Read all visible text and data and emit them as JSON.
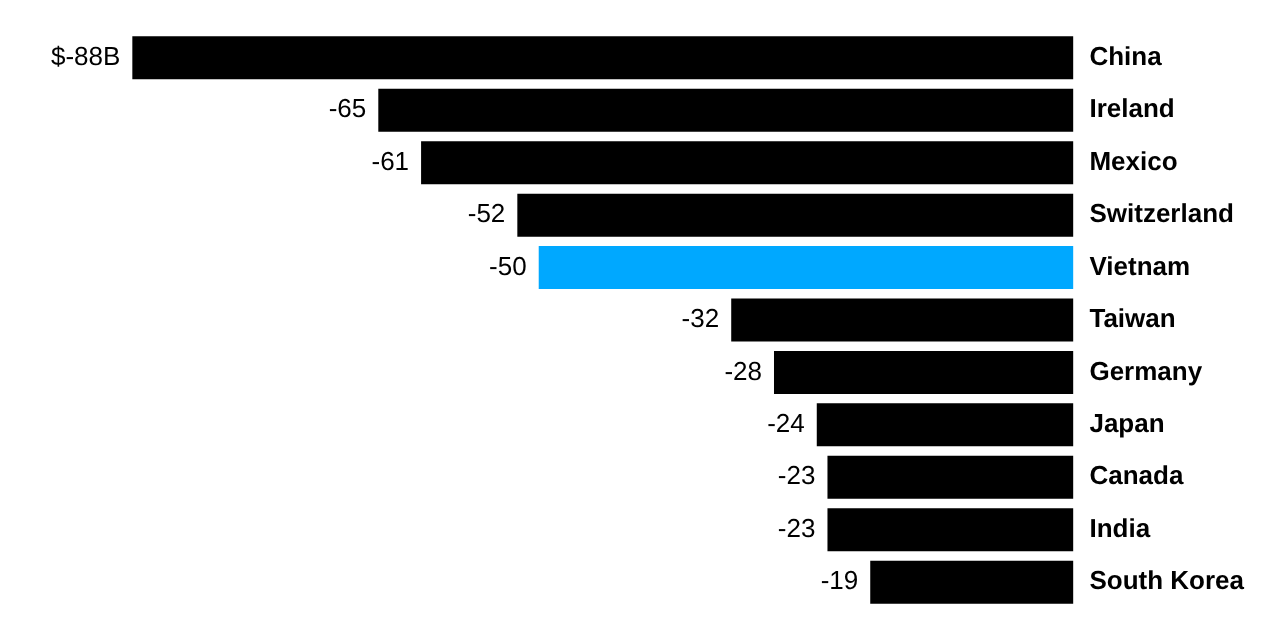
{
  "chart_data": {
    "type": "bar",
    "orientation": "horizontal",
    "categories": [
      "China",
      "Ireland",
      "Mexico",
      "Switzerland",
      "Vietnam",
      "Taiwan",
      "Germany",
      "Japan",
      "Canada",
      "India",
      "South Korea"
    ],
    "values": [
      -88,
      -65,
      -61,
      -52,
      -50,
      -32,
      -28,
      -24,
      -23,
      -23,
      -19
    ],
    "value_labels": [
      "$-88B",
      "-65",
      "-61",
      "-52",
      "-50",
      "-32",
      "-28",
      "-24",
      "-23",
      "-23",
      "-19"
    ],
    "colors": [
      "#000000",
      "#000000",
      "#000000",
      "#000000",
      "#00a8ff",
      "#000000",
      "#000000",
      "#000000",
      "#000000",
      "#000000",
      "#000000"
    ],
    "legend": false
  }
}
